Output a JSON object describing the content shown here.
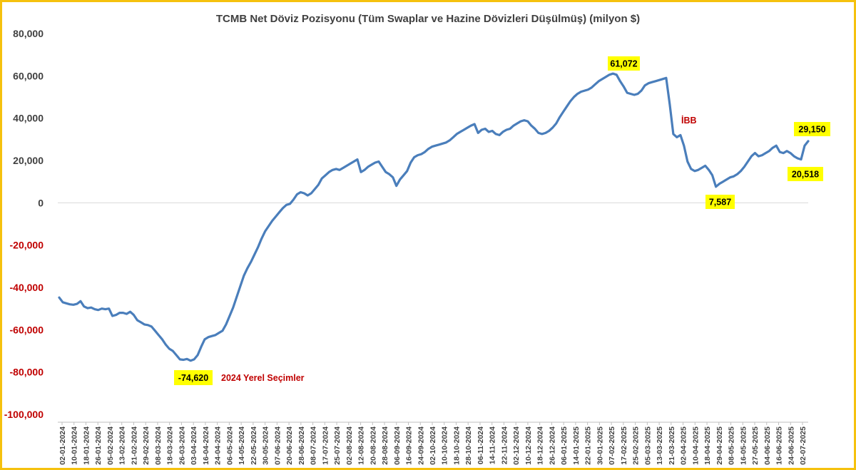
{
  "chart_data": {
    "type": "line",
    "title": "TCMB Net Döviz Pozisyonu (Tüm Swaplar ve Hazine Dövizleri Düşülmüş) (milyon $)",
    "ylim": [
      -100000,
      80000
    ],
    "yticks": [
      80000,
      60000,
      40000,
      20000,
      0,
      -20000,
      -40000,
      -60000,
      -80000,
      -100000
    ],
    "ytick_labels": [
      "80,000",
      "60,000",
      "40,000",
      "20,000",
      "0",
      "-20,000",
      "-40,000",
      "-60,000",
      "-80,000",
      "-100,000"
    ],
    "x_tick_labels": [
      "02-01-2024",
      "10-01-2024",
      "18-01-2024",
      "26-01-2024",
      "05-02-2024",
      "13-02-2024",
      "21-02-2024",
      "29-02-2024",
      "08-03-2024",
      "18-03-2024",
      "26-03-2024",
      "03-04-2024",
      "16-04-2024",
      "24-04-2024",
      "06-05-2024",
      "14-05-2024",
      "22-05-2024",
      "30-05-2024",
      "07-06-2024",
      "20-06-2024",
      "28-06-2024",
      "08-07-2024",
      "17-07-2024",
      "25-07-2024",
      "02-08-2024",
      "12-08-2024",
      "20-08-2024",
      "28-08-2024",
      "06-09-2024",
      "16-09-2024",
      "24-09-2024",
      "02-10-2024",
      "10-10-2024",
      "18-10-2024",
      "28-10-2024",
      "06-11-2024",
      "14-11-2024",
      "22-11-2024",
      "02-12-2024",
      "10-12-2024",
      "18-12-2024",
      "26-12-2024",
      "06-01-2025",
      "14-01-2025",
      "22-01-2025",
      "30-01-2025",
      "07-02-2025",
      "17-02-2025",
      "25-02-2025",
      "05-03-2025",
      "13-03-2025",
      "21-03-2025",
      "02-04-2025",
      "10-04-2025",
      "18-04-2025",
      "29-04-2025",
      "08-05-2025",
      "16-05-2025",
      "27-05-2025",
      "04-06-2025",
      "16-06-2025",
      "24-06-2025",
      "02-07-2025"
    ],
    "negative_color": "#c00000",
    "positive_color": "#404040",
    "line_color": "#4a7ebb",
    "grid": false,
    "legend": "none",
    "series": [
      {
        "values": [
          -44800,
          -47000,
          -47500,
          -48000,
          -48200,
          -47800,
          -46500,
          -49000,
          -49800,
          -49500,
          -50300,
          -50700,
          -50000,
          -50300,
          -50000,
          -53500,
          -53000,
          -52000,
          -52000,
          -52500,
          -51500,
          -53000,
          -55500,
          -56500,
          -57500,
          -57800,
          -58500,
          -60500,
          -62500,
          -64500,
          -67000,
          -69000,
          -70000,
          -72000,
          -74000,
          -74200,
          -73800,
          -74620,
          -74000,
          -72000,
          -68000,
          -64500,
          -63500,
          -63000,
          -62500,
          -61500,
          -60500,
          -57500,
          -53500,
          -49500,
          -44500,
          -39500,
          -34500,
          -31000,
          -28000,
          -24500,
          -21000,
          -17000,
          -13500,
          -11000,
          -8500,
          -6500,
          -4500,
          -2500,
          -1000,
          -500,
          1500,
          4000,
          5000,
          4500,
          3500,
          4500,
          6500,
          8500,
          11500,
          13000,
          14500,
          15500,
          16000,
          15500,
          16500,
          17500,
          18500,
          19500,
          20500,
          14500,
          15500,
          17000,
          18000,
          19000,
          19500,
          17000,
          14500,
          13500,
          12000,
          8000,
          11000,
          13000,
          15000,
          19000,
          21500,
          22500,
          23000,
          24000,
          25500,
          26500,
          27000,
          27500,
          28000,
          28500,
          29500,
          31000,
          32500,
          33500,
          34500,
          35500,
          36500,
          37200,
          33000,
          34500,
          35000,
          33500,
          34000,
          32500,
          32000,
          33500,
          34500,
          35000,
          36500,
          37500,
          38500,
          39000,
          38500,
          36500,
          35000,
          33000,
          32500,
          33000,
          34000,
          35500,
          37500,
          40500,
          43000,
          45500,
          48000,
          50000,
          51500,
          52500,
          53000,
          53500,
          54500,
          56000,
          57500,
          58500,
          59500,
          60500,
          61072,
          60500,
          57500,
          55000,
          52000,
          51500,
          51000,
          51500,
          53000,
          55500,
          56500,
          57000,
          57500,
          58000,
          58500,
          59000,
          46500,
          32500,
          31000,
          32000,
          27000,
          19500,
          16000,
          15000,
          15500,
          16500,
          17500,
          15500,
          13000,
          7587,
          9000,
          10000,
          11000,
          12000,
          12500,
          13500,
          15000,
          17000,
          19500,
          22000,
          23500,
          22000,
          22500,
          23500,
          24500,
          26000,
          27000,
          24000,
          23500,
          24500,
          23500,
          22000,
          21000,
          20518,
          27000,
          29150
        ]
      }
    ]
  },
  "annotations": [
    {
      "text": "-74,620",
      "style": "box"
    },
    {
      "text": "2024 Yerel Seçimler",
      "style": "red"
    },
    {
      "text": "61,072",
      "style": "box"
    },
    {
      "text": "İBB",
      "style": "red"
    },
    {
      "text": "29,150",
      "style": "box"
    },
    {
      "text": "20,518",
      "style": "box"
    },
    {
      "text": "7,587",
      "style": "box"
    }
  ]
}
